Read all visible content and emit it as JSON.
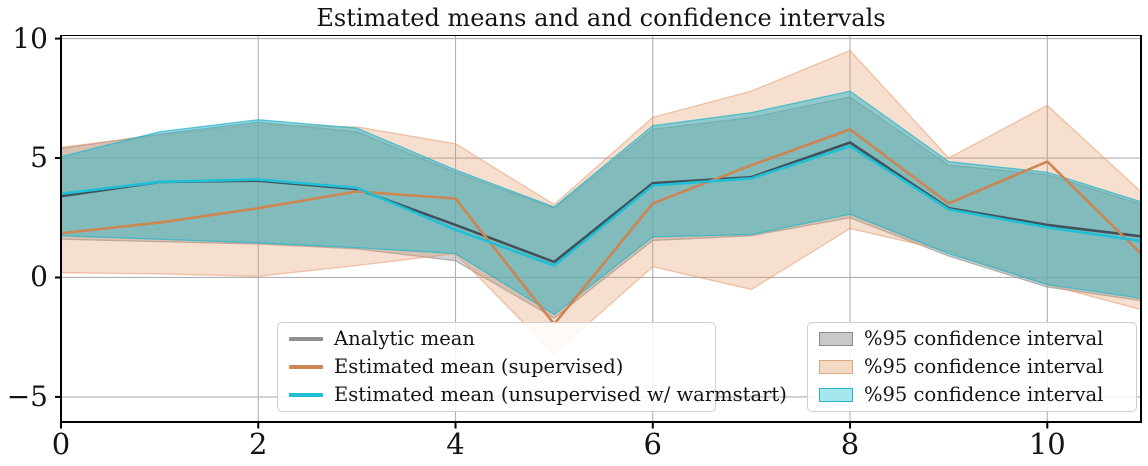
{
  "title": "Estimated means and and confidence intervals",
  "chart_data": {
    "type": "line",
    "title": "Estimated means and and confidence intervals",
    "xlabel": "",
    "ylabel": "",
    "grid": true,
    "grid_color": "#b0b0b0",
    "background": "#ffffff",
    "xlim": [
      0,
      10.95
    ],
    "ylim": [
      -6.05,
      10.15
    ],
    "x_ticks": [
      0,
      2,
      4,
      6,
      8,
      10
    ],
    "x_tick_labels": [
      "0",
      "2",
      "4",
      "6",
      "8",
      "10"
    ],
    "y_ticks": [
      10,
      5,
      0,
      -5
    ],
    "y_tick_labels": [
      "10",
      "5",
      "0",
      "−5"
    ],
    "x": [
      0,
      1,
      2,
      3,
      4,
      5,
      6,
      7,
      8,
      9,
      10,
      11
    ],
    "series": [
      {
        "name": "Analytic mean",
        "values": [
          3.4,
          4.0,
          4.05,
          3.7,
          2.2,
          0.65,
          3.95,
          4.2,
          5.65,
          2.9,
          2.2,
          1.7
        ],
        "color": "#42525a",
        "legend_color": "#8f8f8f"
      },
      {
        "name": "Estimated mean (supervised)",
        "values": [
          1.85,
          2.3,
          2.9,
          3.6,
          3.3,
          -1.95,
          3.1,
          4.7,
          6.2,
          3.1,
          4.85,
          0.8
        ],
        "color": "#cd8552",
        "legend_color": "#cd8552"
      },
      {
        "name": "Estimated mean (unsupervised w/ warmstart)",
        "values": [
          3.5,
          4.0,
          4.1,
          3.75,
          2.0,
          0.5,
          3.85,
          4.15,
          5.5,
          2.85,
          2.1,
          1.5
        ],
        "color": "#1fbfd6",
        "legend_color": "#1fbfd6"
      }
    ],
    "bands": [
      {
        "name": "analytic-ci",
        "label": "%95 confidence interval",
        "upper": [
          5.4,
          6.0,
          6.5,
          6.1,
          4.4,
          2.9,
          6.2,
          6.7,
          7.55,
          4.7,
          4.3,
          3.0
        ],
        "lower": [
          1.6,
          1.5,
          1.4,
          1.2,
          0.7,
          -1.7,
          1.55,
          1.75,
          2.5,
          0.9,
          -0.4,
          -1.0
        ],
        "fill": "#999999",
        "opacity": 0.45,
        "swatch_fill": "#c9c9c9",
        "swatch_border": "#8a8a8a"
      },
      {
        "name": "supervised-ci",
        "label": "%95 confidence interval",
        "upper": [
          5.45,
          5.95,
          6.4,
          6.3,
          5.6,
          3.05,
          6.7,
          7.8,
          9.5,
          5.0,
          7.2,
          3.4
        ],
        "lower": [
          0.2,
          0.15,
          0.05,
          0.5,
          1.0,
          -3.2,
          0.45,
          -0.5,
          2.05,
          1.1,
          -0.3,
          -1.4
        ],
        "fill": "#e59c6e",
        "opacity": 0.32,
        "swatch_fill": "#f2d9c4",
        "swatch_border": "#dbaa82"
      },
      {
        "name": "unsupervised-ci",
        "label": "%95 confidence interval",
        "upper": [
          5.05,
          6.1,
          6.6,
          6.25,
          4.5,
          2.95,
          6.35,
          6.9,
          7.8,
          4.85,
          4.4,
          3.1
        ],
        "lower": [
          1.75,
          1.6,
          1.45,
          1.25,
          1.0,
          -1.55,
          1.7,
          1.8,
          2.65,
          1.0,
          -0.3,
          -0.9
        ],
        "fill": "#2ab5c8",
        "opacity": 0.5,
        "swatch_fill": "#a6e6ef",
        "swatch_border": "#2ab5c8"
      }
    ],
    "legend_position": "lower center (lines) and lower right (intervals)",
    "axis_color": "#000000"
  }
}
